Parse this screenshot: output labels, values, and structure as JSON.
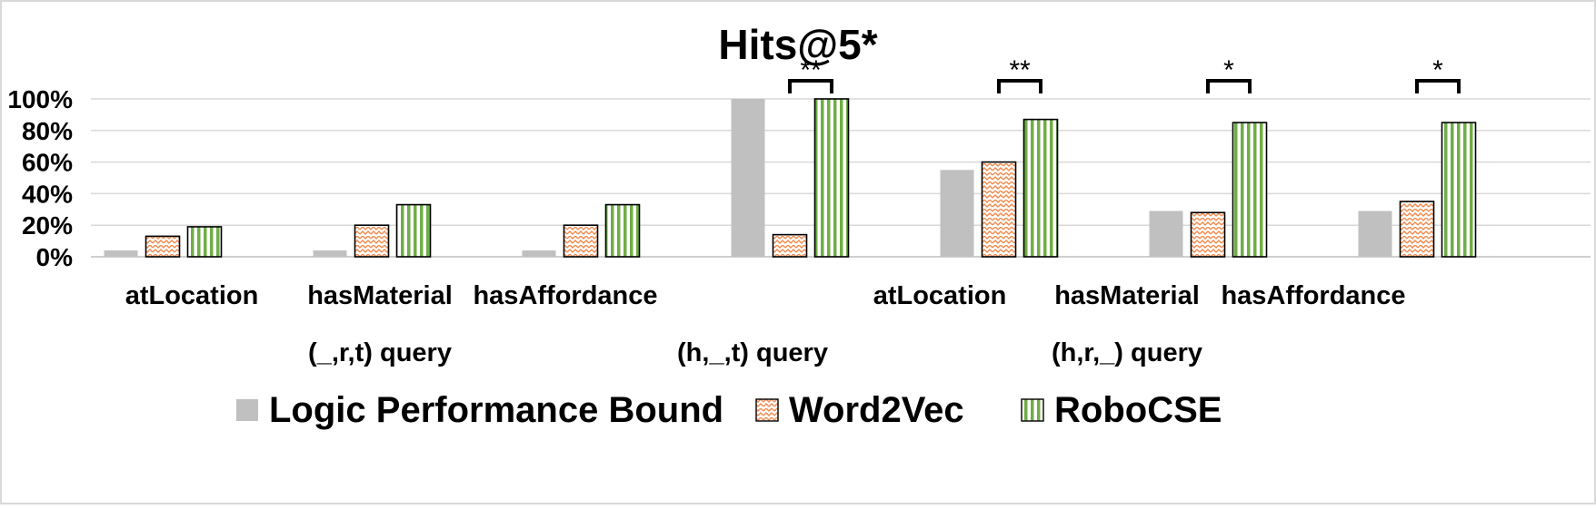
{
  "chart_data": {
    "type": "bar",
    "title": "Hits@5*",
    "xlabel": "",
    "ylabel": "",
    "ylim": [
      0,
      1
    ],
    "yticks": [
      0,
      0.2,
      0.4,
      0.6,
      0.8,
      1.0
    ],
    "ytick_labels": [
      "0%",
      "20%",
      "40%",
      "60%",
      "80%",
      "100%"
    ],
    "categories": [
      "atLocation",
      "hasMaterial",
      "hasAffordance",
      "",
      "atLocation",
      "hasMaterial",
      "hasAffordance"
    ],
    "groups": [
      {
        "label": "(_,r,t) query",
        "span": [
          0,
          2
        ]
      },
      {
        "label": "(h,_,t) query",
        "span": [
          3,
          3
        ]
      },
      {
        "label": "(h,r,_) query",
        "span": [
          4,
          6
        ]
      }
    ],
    "series": [
      {
        "name": "Logic Performance Bound",
        "color": "#c0c0c0",
        "pattern": "solid",
        "values": [
          0.04,
          0.04,
          0.04,
          1.0,
          0.55,
          0.29,
          0.29
        ]
      },
      {
        "name": "Word2Vec",
        "color": "#f4a06a",
        "pattern": "zigzag",
        "values": [
          0.13,
          0.2,
          0.2,
          0.14,
          0.6,
          0.28,
          0.35
        ]
      },
      {
        "name": "RoboCSE",
        "color": "#70ad47",
        "pattern": "vertical-stripes",
        "values": [
          0.19,
          0.33,
          0.33,
          1.0,
          0.87,
          0.85,
          0.85
        ]
      }
    ],
    "significance": [
      {
        "category": 3,
        "label": "**"
      },
      {
        "category": 4,
        "label": "**"
      },
      {
        "category": 5,
        "label": "*"
      },
      {
        "category": 6,
        "label": "*"
      }
    ],
    "grid": true,
    "legend": "bottom"
  }
}
